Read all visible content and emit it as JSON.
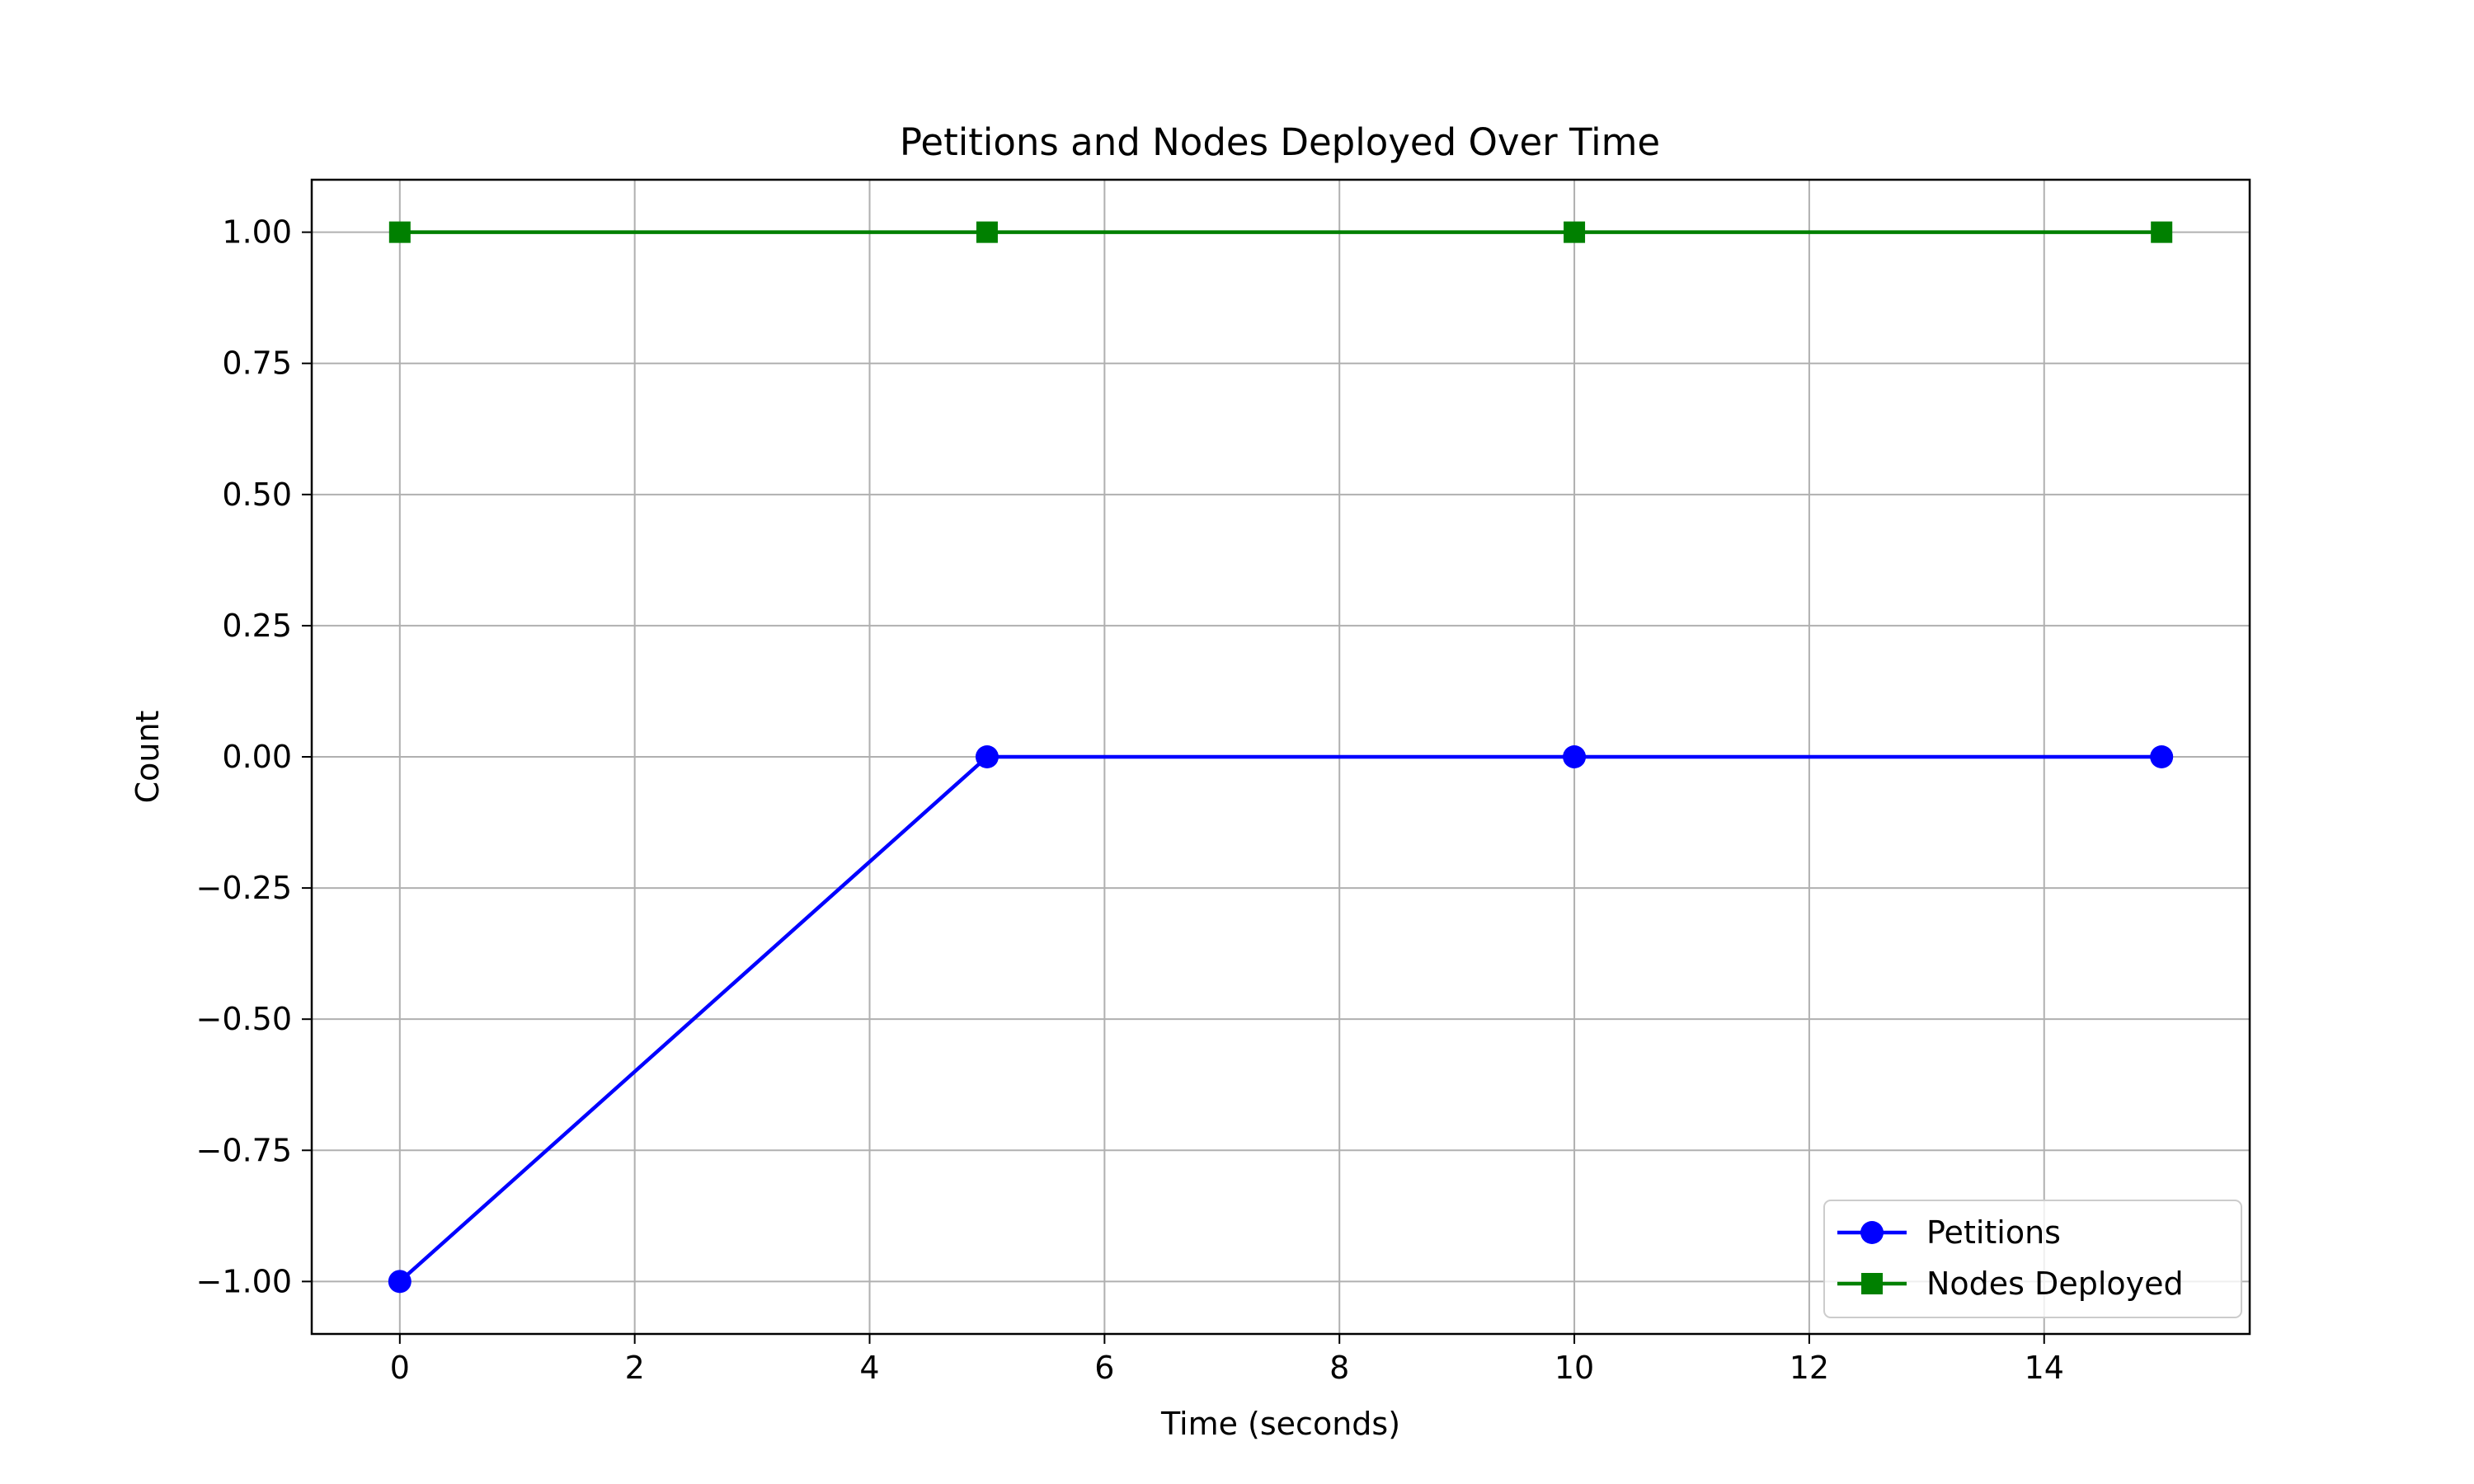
{
  "chart_data": {
    "type": "line",
    "title": "Petitions and Nodes Deployed Over Time",
    "xlabel": "Time (seconds)",
    "ylabel": "Count",
    "xlim": [
      -0.75,
      15.75
    ],
    "ylim": [
      -1.1,
      1.1
    ],
    "x_ticks": [
      0,
      2,
      4,
      6,
      8,
      10,
      12,
      14
    ],
    "x_tick_labels": [
      "0",
      "2",
      "4",
      "6",
      "8",
      "10",
      "12",
      "14"
    ],
    "y_ticks": [
      1.0,
      0.75,
      0.5,
      0.25,
      0.0,
      -0.25,
      -0.5,
      -0.75,
      -1.0
    ],
    "y_tick_labels": [
      "1.00",
      "0.75",
      "0.50",
      "0.25",
      "0.00",
      "−0.25",
      "−0.50",
      "−0.75",
      "−1.00"
    ],
    "grid": true,
    "legend_position": "lower-right",
    "series": [
      {
        "name": "Petitions",
        "color": "#0000ff",
        "marker": "circle",
        "x": [
          0,
          5,
          10,
          15
        ],
        "values": [
          -1,
          0,
          0,
          0
        ]
      },
      {
        "name": "Nodes Deployed",
        "color": "#008000",
        "marker": "square",
        "x": [
          0,
          5,
          10,
          15
        ],
        "values": [
          1,
          1,
          1,
          1
        ]
      }
    ]
  }
}
